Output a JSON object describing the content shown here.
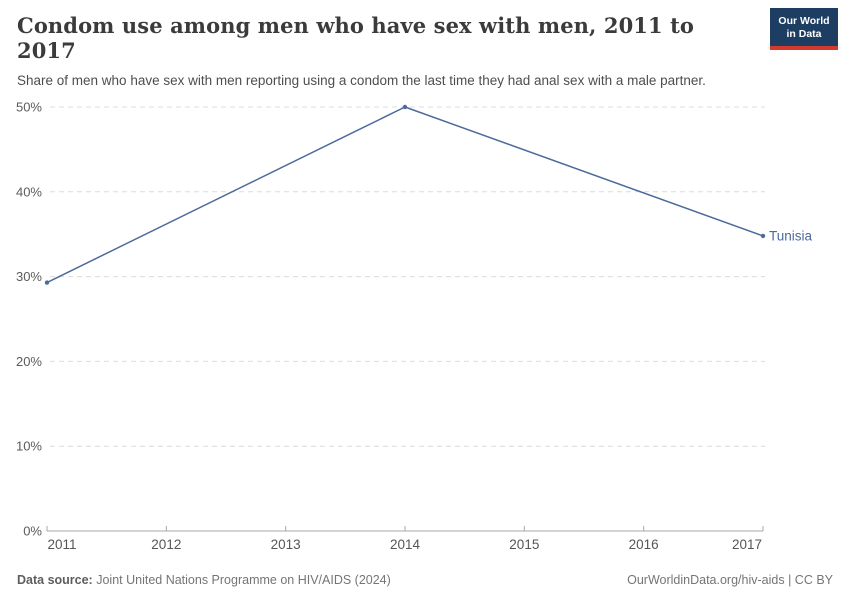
{
  "header": {
    "title": "Condom use among men who have sex with men, 2011 to 2017",
    "subtitle": "Share of men who have sex with men reporting using a condom the last time they had anal sex with a male partner.",
    "logo": {
      "line1": "Our World",
      "line2": "in Data",
      "bg_color": "#1d3d63",
      "stripe_color": "#d7382d"
    }
  },
  "chart_data": {
    "type": "line",
    "title": "Condom use among men who have sex with men, 2011 to 2017",
    "series": [
      {
        "name": "Tunisia",
        "color": "#4c6a9c",
        "points": [
          {
            "x": 2011,
            "y": 29.3
          },
          {
            "x": 2014,
            "y": 50
          },
          {
            "x": 2017,
            "y": 34.8
          }
        ]
      }
    ],
    "xlabel": "",
    "ylabel": "",
    "xlim": [
      2011,
      2017
    ],
    "ylim": [
      0,
      50
    ],
    "x_ticks": [
      2011,
      2012,
      2013,
      2014,
      2015,
      2016,
      2017
    ],
    "y_ticks": [
      {
        "value": 0,
        "label": "0%"
      },
      {
        "value": 10,
        "label": "10%"
      },
      {
        "value": 20,
        "label": "20%"
      },
      {
        "value": 30,
        "label": "30%"
      },
      {
        "value": 40,
        "label": "40%"
      },
      {
        "value": 50,
        "label": "50%"
      }
    ],
    "grid": "horizontal-dashed",
    "legend_position": "end-of-line-label",
    "colors": {
      "gridline": "#dcdcdc",
      "axis": "#a8a8a8",
      "y_tick_label": "#5b5b5b",
      "x_tick_label": "#565656"
    }
  },
  "footer": {
    "source_label": "Data source:",
    "source_text": "Joint United Nations Programme on HIV/AIDS (2024)",
    "credit_text": "OurWorldinData.org/hiv-aids | CC BY"
  }
}
